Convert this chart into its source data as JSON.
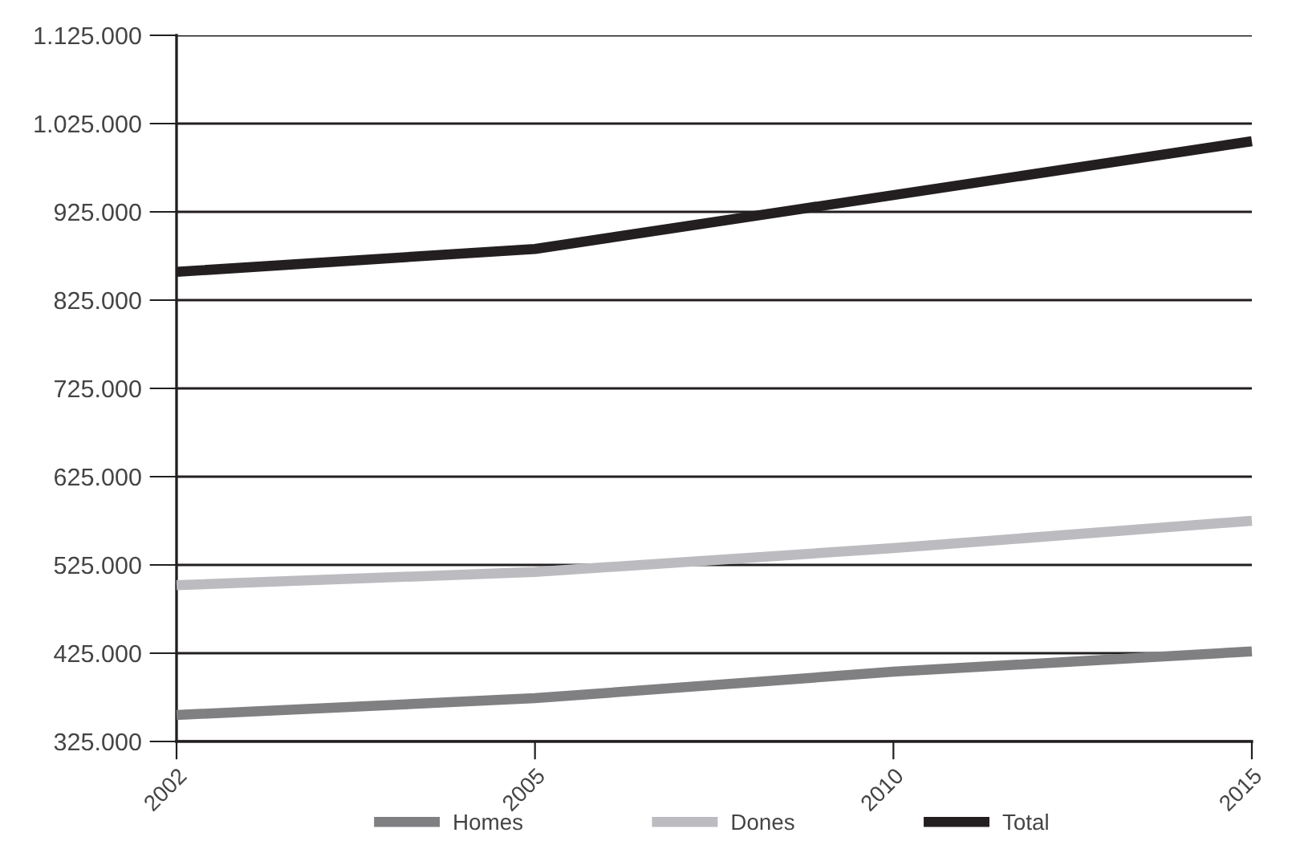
{
  "chart_data": {
    "type": "line",
    "categories": [
      "2002",
      "2005",
      "2010",
      "2015"
    ],
    "series": [
      {
        "name": "Homes",
        "color": "#808083",
        "values": [
          355000,
          374000,
          404000,
          427000
        ]
      },
      {
        "name": "Dones",
        "color": "#bcbcc0",
        "values": [
          502000,
          517000,
          544000,
          575000
        ]
      },
      {
        "name": "Total",
        "color": "#231f20",
        "values": [
          857000,
          883000,
          944000,
          1005000
        ]
      }
    ],
    "ylim": [
      325000,
      1125000
    ],
    "yticks": [
      {
        "value": 325000,
        "label": "325.000"
      },
      {
        "value": 425000,
        "label": "425.000"
      },
      {
        "value": 525000,
        "label": "525.000"
      },
      {
        "value": 625000,
        "label": "625.000"
      },
      {
        "value": 725000,
        "label": "725.000"
      },
      {
        "value": 825000,
        "label": "825.000"
      },
      {
        "value": 925000,
        "label": "925.000"
      },
      {
        "value": 1025000,
        "label": "1.025.000"
      },
      {
        "value": 1125000,
        "label": "1.125.000"
      }
    ],
    "grid": "y",
    "legend": "bottom",
    "marker": "none",
    "line_style": "solid"
  }
}
